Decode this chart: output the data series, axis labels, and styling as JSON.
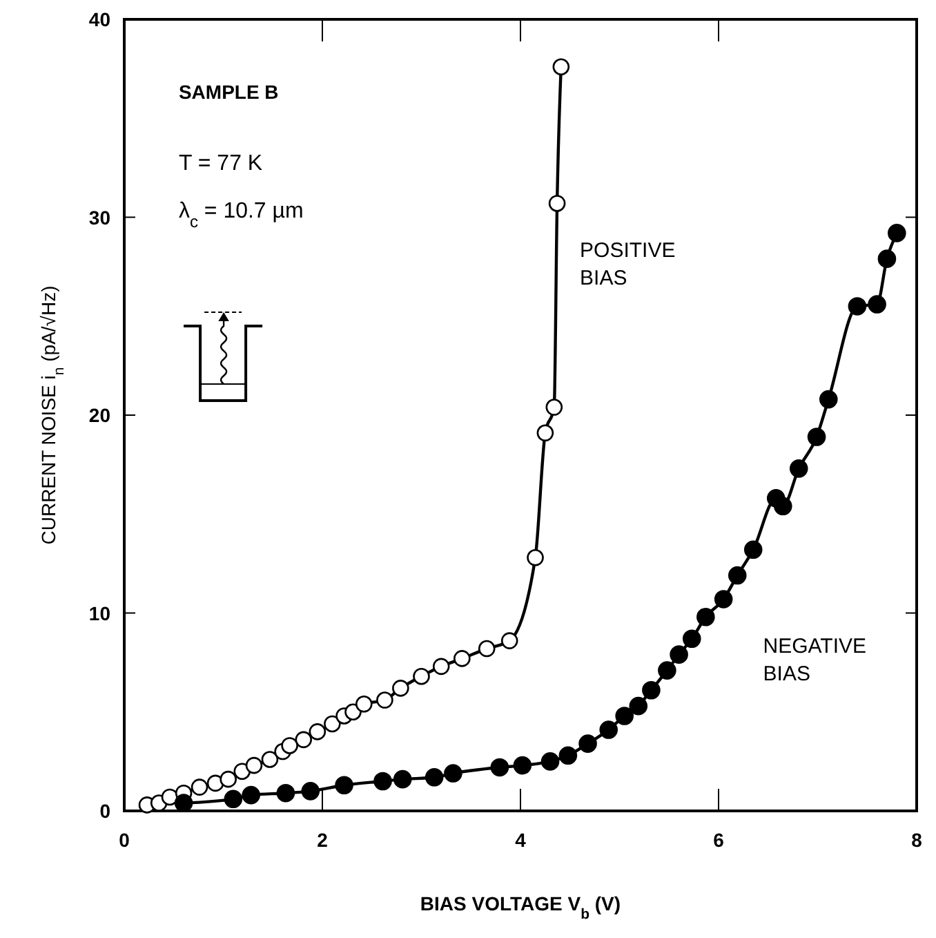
{
  "chart_data": {
    "type": "line",
    "xlabel": "BIAS VOLTAGE V$_{b}$ (V)",
    "ylabel": "CURRENT NOISE i$_{n}$ (pA/√Hz)",
    "xlim": [
      0,
      8
    ],
    "ylim": [
      0,
      40
    ],
    "xticks": [
      0,
      2,
      4,
      6,
      8
    ],
    "yticks": [
      0,
      10,
      20,
      30,
      40
    ],
    "grid": false,
    "marker": "circle",
    "line_style": "solid",
    "annotations": [
      "SAMPLE B",
      "T = 77 K",
      "λ$_{c}$ = 10.7 µm"
    ],
    "series": [
      {
        "name": "POSITIVE BIAS",
        "color": "#000000",
        "x": [
          0.23,
          0.35,
          0.46,
          0.6,
          0.76,
          0.92,
          1.05,
          1.19,
          1.31,
          1.47,
          1.6,
          1.67,
          1.81,
          1.95,
          2.1,
          2.22,
          2.31,
          2.42,
          2.63,
          2.79,
          3.0,
          3.2,
          3.41,
          3.66,
          3.89,
          4.15,
          4.25,
          4.34,
          4.37,
          4.41
        ],
        "values": [
          0.3,
          0.4,
          0.7,
          0.9,
          1.2,
          1.4,
          1.6,
          2.0,
          2.3,
          2.6,
          3.0,
          3.3,
          3.6,
          4.0,
          4.4,
          4.8,
          5.0,
          5.4,
          5.6,
          6.2,
          6.8,
          7.3,
          7.7,
          8.2,
          8.6,
          12.8,
          19.1,
          20.4,
          30.7,
          37.6
        ]
      },
      {
        "name": "NEGATIVE BIAS",
        "color": "#000000",
        "x": [
          0.6,
          1.1,
          1.28,
          1.63,
          1.88,
          2.22,
          2.61,
          2.81,
          3.13,
          3.32,
          3.79,
          4.02,
          4.3,
          4.48,
          4.68,
          4.89,
          5.05,
          5.19,
          5.32,
          5.48,
          5.6,
          5.73,
          5.87,
          6.05,
          6.19,
          6.35,
          6.58,
          6.65,
          6.81,
          6.99,
          7.11,
          7.4,
          7.6,
          7.7,
          7.8
        ],
        "values": [
          0.4,
          0.6,
          0.8,
          0.9,
          1.0,
          1.3,
          1.5,
          1.6,
          1.7,
          1.9,
          2.2,
          2.3,
          2.5,
          2.8,
          3.4,
          4.1,
          4.8,
          5.3,
          6.1,
          7.1,
          7.9,
          8.7,
          9.8,
          10.7,
          11.9,
          13.2,
          15.8,
          15.4,
          17.3,
          18.9,
          20.8,
          25.5,
          25.6,
          27.9,
          29.2
        ]
      }
    ]
  }
}
